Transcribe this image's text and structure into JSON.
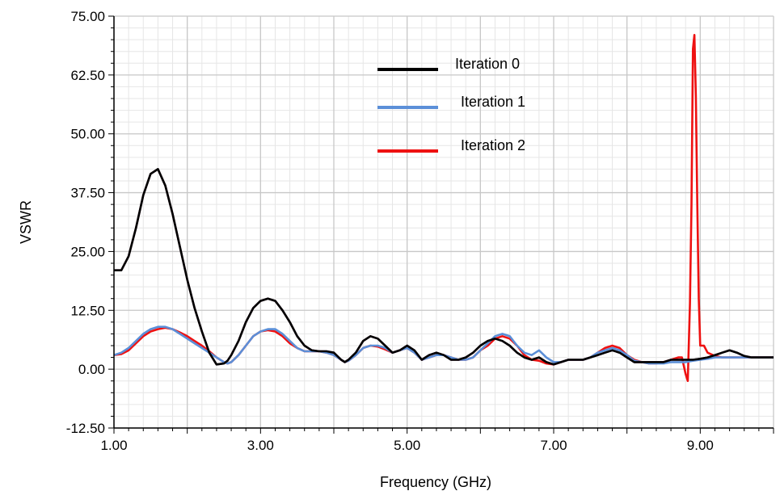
{
  "chart_data": {
    "type": "line",
    "title": "",
    "xlabel": "Frequency (GHz)",
    "ylabel": "VSWR",
    "xlim": [
      1.0,
      10.0
    ],
    "ylim": [
      -12.5,
      75.0
    ],
    "x_ticks": [
      1.0,
      3.0,
      5.0,
      7.0,
      9.0
    ],
    "x_tick_labels": [
      "1.00",
      "3.00",
      "5.00",
      "7.00",
      "9.00"
    ],
    "y_ticks": [
      -12.5,
      0.0,
      12.5,
      25.0,
      37.5,
      50.0,
      62.5,
      75.0
    ],
    "y_tick_labels": [
      "-12.50",
      "0.00",
      "12.50",
      "25.00",
      "37.50",
      "50.00",
      "62.50",
      "75.00"
    ],
    "grid": true,
    "legend_position": "top-center",
    "series": [
      {
        "name": "Iteration 0",
        "color": "#000000",
        "x": [
          1.0,
          1.1,
          1.2,
          1.3,
          1.4,
          1.5,
          1.6,
          1.7,
          1.8,
          1.9,
          2.0,
          2.1,
          2.2,
          2.3,
          2.4,
          2.5,
          2.55,
          2.6,
          2.7,
          2.8,
          2.9,
          3.0,
          3.1,
          3.2,
          3.3,
          3.4,
          3.5,
          3.6,
          3.7,
          3.8,
          3.9,
          4.0,
          4.1,
          4.15,
          4.2,
          4.3,
          4.4,
          4.5,
          4.6,
          4.7,
          4.8,
          4.9,
          5.0,
          5.1,
          5.2,
          5.3,
          5.4,
          5.5,
          5.6,
          5.7,
          5.8,
          5.9,
          6.0,
          6.1,
          6.2,
          6.3,
          6.4,
          6.5,
          6.6,
          6.7,
          6.8,
          6.9,
          7.0,
          7.1,
          7.2,
          7.3,
          7.4,
          7.5,
          7.6,
          7.7,
          7.8,
          7.9,
          8.0,
          8.1,
          8.2,
          8.3,
          8.4,
          8.5,
          8.6,
          8.7,
          8.8,
          8.9,
          9.0,
          9.1,
          9.2,
          9.3,
          9.4,
          9.5,
          9.6,
          9.7,
          9.8,
          9.9,
          10.0
        ],
        "y": [
          21.0,
          21.0,
          24.0,
          30.0,
          37.0,
          41.5,
          42.5,
          39.0,
          33.0,
          26.0,
          19.0,
          13.0,
          8.0,
          3.5,
          1.0,
          1.2,
          1.8,
          3.0,
          6.0,
          10.0,
          13.0,
          14.5,
          15.0,
          14.5,
          12.5,
          10.0,
          7.0,
          5.0,
          4.0,
          3.8,
          3.8,
          3.5,
          2.0,
          1.5,
          2.0,
          3.5,
          6.0,
          7.0,
          6.5,
          5.0,
          3.5,
          4.0,
          5.0,
          4.0,
          2.0,
          3.0,
          3.5,
          3.0,
          2.0,
          2.0,
          2.5,
          3.5,
          5.0,
          6.0,
          6.5,
          6.0,
          5.0,
          3.5,
          2.5,
          2.0,
          2.5,
          1.5,
          1.0,
          1.5,
          2.0,
          2.0,
          2.0,
          2.5,
          3.0,
          3.5,
          4.0,
          3.5,
          2.5,
          1.5,
          1.5,
          1.5,
          1.5,
          1.5,
          2.0,
          2.0,
          2.0,
          2.0,
          2.2,
          2.5,
          3.0,
          3.5,
          4.0,
          3.5,
          2.8,
          2.5,
          2.5,
          2.5,
          2.5
        ]
      },
      {
        "name": "Iteration 1",
        "color": "#5b8fd8",
        "x": [
          1.0,
          1.1,
          1.2,
          1.3,
          1.4,
          1.5,
          1.6,
          1.7,
          1.8,
          1.9,
          2.0,
          2.1,
          2.2,
          2.3,
          2.4,
          2.5,
          2.55,
          2.6,
          2.7,
          2.8,
          2.9,
          3.0,
          3.1,
          3.2,
          3.3,
          3.4,
          3.5,
          3.6,
          3.7,
          3.8,
          3.9,
          4.0,
          4.1,
          4.15,
          4.2,
          4.3,
          4.4,
          4.5,
          4.6,
          4.7,
          4.8,
          4.9,
          5.0,
          5.1,
          5.2,
          5.3,
          5.4,
          5.5,
          5.6,
          5.7,
          5.8,
          5.9,
          6.0,
          6.1,
          6.2,
          6.3,
          6.4,
          6.5,
          6.6,
          6.7,
          6.8,
          6.9,
          7.0,
          7.1,
          7.2,
          7.3,
          7.4,
          7.5,
          7.6,
          7.7,
          7.8,
          7.9,
          8.0,
          8.1,
          8.2,
          8.3,
          8.4,
          8.5,
          8.6,
          8.7,
          8.8,
          8.9,
          9.0,
          9.1,
          9.2,
          9.3,
          9.4,
          9.5,
          9.6,
          9.7,
          9.8,
          9.9,
          10.0
        ],
        "y": [
          3.0,
          3.5,
          4.5,
          6.0,
          7.5,
          8.5,
          9.0,
          9.0,
          8.5,
          7.5,
          6.5,
          5.5,
          4.5,
          3.5,
          2.5,
          1.5,
          1.2,
          1.5,
          3.0,
          5.0,
          7.0,
          8.0,
          8.5,
          8.5,
          7.5,
          6.0,
          4.5,
          3.8,
          3.8,
          3.8,
          3.5,
          3.0,
          2.0,
          1.5,
          1.8,
          3.0,
          4.5,
          5.0,
          5.0,
          4.5,
          3.5,
          4.0,
          4.5,
          3.5,
          2.0,
          2.5,
          3.0,
          3.0,
          2.5,
          2.0,
          2.0,
          2.5,
          4.0,
          5.5,
          7.0,
          7.5,
          7.0,
          5.0,
          3.5,
          3.0,
          4.0,
          2.5,
          1.5,
          1.5,
          2.0,
          2.0,
          2.0,
          2.5,
          3.5,
          4.0,
          4.5,
          4.0,
          3.0,
          1.8,
          1.5,
          1.2,
          1.2,
          1.2,
          1.5,
          1.5,
          1.5,
          1.8,
          2.0,
          2.2,
          2.5,
          2.5,
          2.5,
          2.5,
          2.5,
          2.5,
          2.5,
          2.5,
          2.5
        ]
      },
      {
        "name": "Iteration 2",
        "color": "#ee1111",
        "x": [
          1.0,
          1.1,
          1.2,
          1.3,
          1.4,
          1.5,
          1.6,
          1.7,
          1.8,
          1.9,
          2.0,
          2.1,
          2.2,
          2.3,
          2.4,
          2.5,
          2.55,
          2.6,
          2.7,
          2.8,
          2.9,
          3.0,
          3.1,
          3.2,
          3.3,
          3.4,
          3.5,
          3.6,
          3.7,
          3.8,
          3.9,
          4.0,
          4.1,
          4.15,
          4.2,
          4.3,
          4.4,
          4.5,
          4.6,
          4.7,
          4.8,
          4.9,
          5.0,
          5.1,
          5.2,
          5.3,
          5.4,
          5.5,
          5.6,
          5.7,
          5.8,
          5.9,
          6.0,
          6.1,
          6.2,
          6.3,
          6.4,
          6.5,
          6.6,
          6.7,
          6.8,
          6.9,
          7.0,
          7.1,
          7.2,
          7.3,
          7.4,
          7.5,
          7.6,
          7.7,
          7.8,
          7.9,
          8.0,
          8.1,
          8.2,
          8.3,
          8.4,
          8.5,
          8.6,
          8.7,
          8.75,
          8.8,
          8.83,
          8.86,
          8.88,
          8.9,
          8.92,
          8.94,
          8.96,
          8.98,
          9.0,
          9.05,
          9.1,
          9.2,
          9.3,
          9.4,
          9.5,
          9.6,
          9.7,
          9.8,
          9.9,
          10.0
        ],
        "y": [
          3.0,
          3.2,
          4.0,
          5.5,
          7.0,
          8.0,
          8.5,
          8.8,
          8.5,
          7.8,
          7.0,
          6.0,
          5.0,
          3.8,
          2.5,
          1.5,
          1.2,
          1.5,
          3.0,
          5.0,
          7.0,
          8.0,
          8.3,
          8.0,
          7.0,
          5.5,
          4.5,
          3.8,
          3.8,
          3.8,
          3.5,
          3.0,
          2.0,
          1.5,
          1.8,
          3.0,
          4.5,
          5.0,
          4.8,
          4.2,
          3.5,
          4.0,
          4.5,
          3.5,
          2.0,
          2.5,
          3.0,
          3.0,
          2.5,
          2.0,
          2.0,
          2.5,
          4.0,
          5.0,
          6.5,
          7.0,
          6.5,
          5.0,
          3.0,
          2.0,
          1.8,
          1.2,
          1.0,
          1.5,
          2.0,
          2.0,
          2.0,
          2.5,
          3.5,
          4.5,
          5.0,
          4.5,
          3.0,
          2.0,
          1.5,
          1.2,
          1.2,
          1.5,
          2.0,
          2.5,
          2.5,
          -1.0,
          -2.5,
          14.0,
          35.0,
          68.0,
          71.0,
          58.0,
          35.0,
          15.0,
          5.0,
          5.0,
          3.5,
          2.8,
          2.5,
          2.5,
          2.5,
          2.5,
          2.5,
          2.5,
          2.5,
          2.5
        ]
      },
      {
        "name": "",
        "color": "#7b3b5a",
        "x": [
          1.0,
          1.1,
          1.2,
          1.3,
          1.4,
          1.5,
          1.6,
          1.7,
          1.8,
          1.9,
          2.0,
          2.1,
          2.2,
          2.3,
          2.4,
          2.5,
          2.55,
          2.6,
          2.7,
          2.8,
          2.9,
          3.0,
          3.1,
          3.2,
          3.3,
          3.4,
          3.5,
          3.6,
          3.7,
          3.8,
          3.9,
          4.0,
          4.1,
          4.15,
          4.2,
          4.3,
          4.4,
          4.5,
          4.6,
          4.7,
          4.8,
          4.9,
          5.0,
          5.1,
          5.2,
          5.3,
          5.4,
          5.5,
          5.6,
          5.7,
          5.8,
          5.9,
          6.0,
          6.1,
          6.2,
          6.3,
          6.4,
          6.5,
          6.6,
          6.7,
          6.8,
          6.9,
          7.0,
          7.1,
          7.2,
          7.3,
          7.4,
          7.5,
          7.6,
          7.7,
          7.8,
          7.9,
          8.0,
          8.1,
          8.2,
          8.3,
          8.4,
          8.5,
          8.6,
          8.7,
          8.8,
          8.9,
          9.0,
          9.1,
          9.2,
          9.3,
          9.4,
          9.5,
          9.6,
          9.7,
          9.8,
          9.9,
          10.0
        ],
        "y": [
          21.0,
          21.0,
          24.0,
          30.0,
          37.0,
          41.5,
          42.5,
          39.0,
          33.0,
          26.0,
          19.0,
          13.0,
          8.0,
          3.5,
          1.0,
          1.2,
          1.8,
          3.0,
          6.0,
          10.0,
          13.0,
          14.5,
          15.0,
          14.5,
          12.5,
          10.0,
          7.0,
          5.0,
          4.0,
          3.8,
          3.8,
          3.5,
          2.0,
          1.5,
          2.0,
          3.5,
          6.0,
          7.0,
          6.5,
          5.0,
          3.5,
          4.0,
          5.0,
          4.0,
          2.0,
          3.0,
          3.5,
          3.0,
          2.0,
          2.0,
          2.5,
          3.5,
          5.0,
          6.0,
          6.5,
          6.0,
          5.0,
          3.5,
          2.5,
          2.0,
          2.5,
          1.5,
          1.0,
          1.5,
          2.0,
          2.0,
          2.0,
          2.5,
          3.0,
          3.5,
          4.0,
          3.5,
          2.5,
          1.5,
          1.5,
          1.5,
          1.5,
          1.5,
          2.0,
          2.0,
          2.0,
          2.0,
          2.2,
          2.5,
          3.0,
          3.5,
          4.0,
          3.5,
          2.8,
          2.5,
          2.5,
          2.5,
          2.5
        ]
      }
    ],
    "draw_order": [
      3,
      2,
      1,
      0
    ],
    "legend_entries": [
      0,
      1,
      2
    ]
  }
}
